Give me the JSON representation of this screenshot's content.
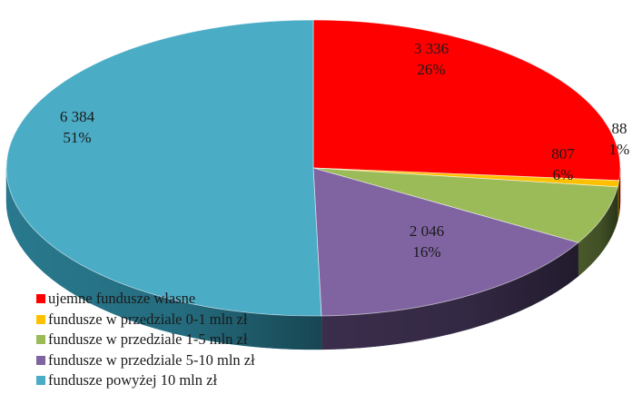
{
  "chart_data": {
    "type": "pie",
    "title": "",
    "three_d": true,
    "legend_position": "bottom-left",
    "slices": [
      {
        "label": "ujemne fundusze własne",
        "value": 3336,
        "value_label": "3 336",
        "percent_label": "26%",
        "color": "#ff0000",
        "side_color": "#8b0000"
      },
      {
        "label": "fundusze w przedziale 0-1 mln zł",
        "value": 88,
        "value_label": "88",
        "percent_label": "1%",
        "color": "#ffc000",
        "side_color": "#8a6a00"
      },
      {
        "label": "fundusze w przedziale 1-5 mln zł",
        "value": 807,
        "value_label": "807",
        "percent_label": "6%",
        "color": "#9bbb59",
        "side_color": "#4d5e2c"
      },
      {
        "label": "fundusze w przedziale 5-10 mln zł",
        "value": 2046,
        "value_label": "2 046",
        "percent_label": "16%",
        "color": "#8064a2",
        "side_color": "#3d3050"
      },
      {
        "label": "fundusze powyżej 10 mln zł",
        "value": 6384,
        "value_label": "6 384",
        "percent_label": "51%",
        "color": "#4bacc6",
        "side_color": "#2b7f95"
      }
    ]
  }
}
